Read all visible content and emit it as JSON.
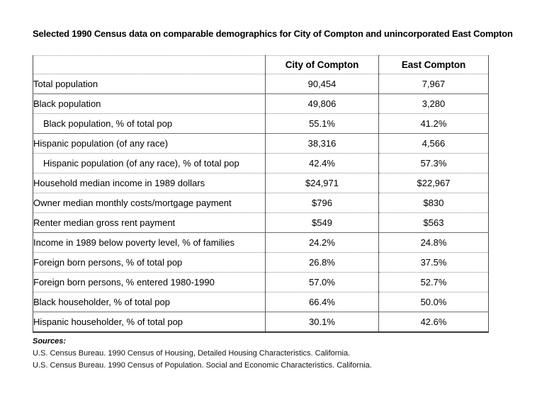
{
  "page_title": "Selected 1990 Census data on comparable demographics for City of Compton and unincorporated East Compton",
  "table": {
    "columns": [
      "",
      "City of Compton",
      "East Compton"
    ],
    "rows": [
      {
        "label": "Total population",
        "city": "90,454",
        "east": "7,967"
      },
      {
        "label": "Black population",
        "city": "49,806",
        "east": "3,280"
      },
      {
        "label": "Black population, % of total pop",
        "city": "55.1%",
        "east": "41.2%"
      },
      {
        "label": "Hispanic population (of any race)",
        "city": "38,316",
        "east": "4,566"
      },
      {
        "label": "Hispanic population (of any race), % of total pop",
        "city": "42.4%",
        "east": "57.3%"
      },
      {
        "label": "Household median income in 1989 dollars",
        "city": "$24,971",
        "east": "$22,967"
      },
      {
        "label": "Owner median monthly costs/mortgage payment",
        "city": "$796",
        "east": "$830"
      },
      {
        "label": "Renter median gross rent payment",
        "city": "$549",
        "east": "$563"
      },
      {
        "label": "Income in 1989 below poverty level, % of families",
        "city": "24.2%",
        "east": "24.8%"
      },
      {
        "label": "Foreign born persons, % of total pop",
        "city": "26.8%",
        "east": "37.5%"
      },
      {
        "label": "Foreign born persons, % entered 1980-1990",
        "city": "57.0%",
        "east": "52.7%"
      },
      {
        "label": "Black householder, % of total pop",
        "city": "66.4%",
        "east": "50.0%"
      },
      {
        "label": "Hispanic householder, % of total pop",
        "city": "30.1%",
        "east": "42.6%"
      }
    ]
  },
  "sources": {
    "label": "Sources:",
    "lines": [
      "U.S. Census Bureau. 1990 Census of Housing, Detailed Housing Characteristics. California.",
      "U.S. Census Bureau. 1990 Census of Population. Social and Economic Characteristics. California."
    ]
  }
}
